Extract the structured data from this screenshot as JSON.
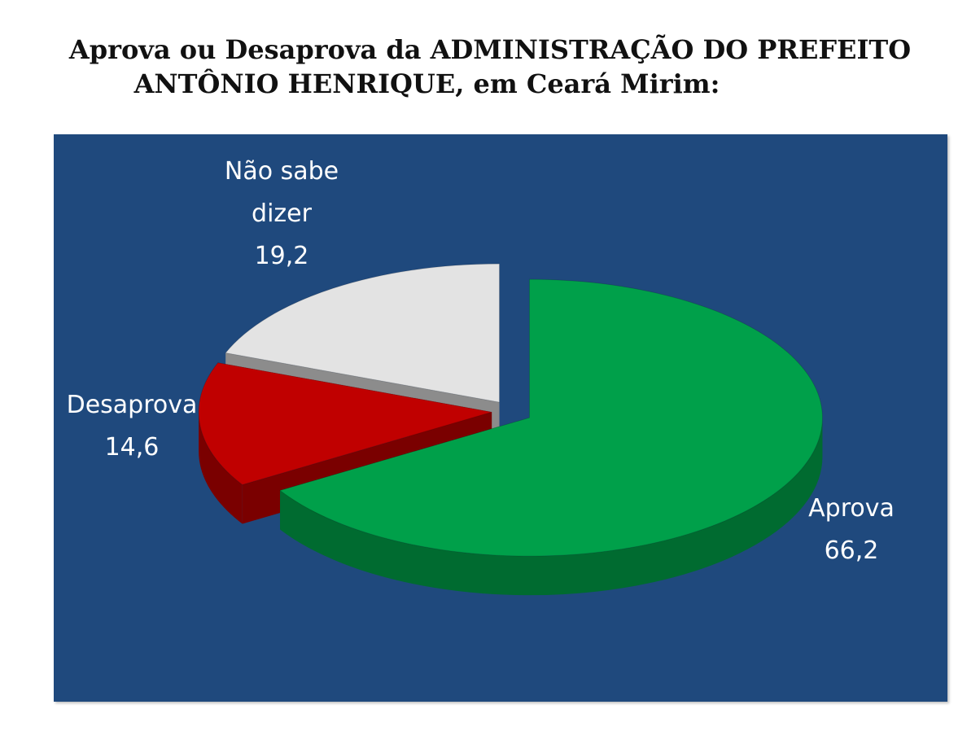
{
  "title": {
    "line1": "Aprova ou Desaprova da ADMINISTRAÇÃO DO PREFEITO",
    "line2": "ANTÔNIO HENRIQUE, em Ceará Mirim:"
  },
  "chart_data": {
    "type": "pie",
    "style": "3d-exploded",
    "title": "Aprova ou Desaprova da ADMINISTRAÇÃO DO PREFEITO ANTÔNIO HENRIQUE, em Ceará Mirim:",
    "legend": "none",
    "slices": [
      {
        "name": "Aprova",
        "label_line1": "Aprova",
        "label_line2": "",
        "value": 66.2,
        "value_text": "66,2",
        "color": "#00a04a",
        "side_color": "#006b30"
      },
      {
        "name": "Desaprova",
        "label_line1": "Desaprova",
        "label_line2": "",
        "value": 14.6,
        "value_text": "14,6",
        "color": "#c00000",
        "side_color": "#7a0000"
      },
      {
        "name": "Não sabe dizer",
        "label_line1": "Não sabe",
        "label_line2": "dizer",
        "value": 19.2,
        "value_text": "19,2",
        "color": "#e3e3e3",
        "side_color": "#8c8c8c"
      }
    ],
    "background_color": "#1f497d",
    "label_color": "#ffffff"
  }
}
